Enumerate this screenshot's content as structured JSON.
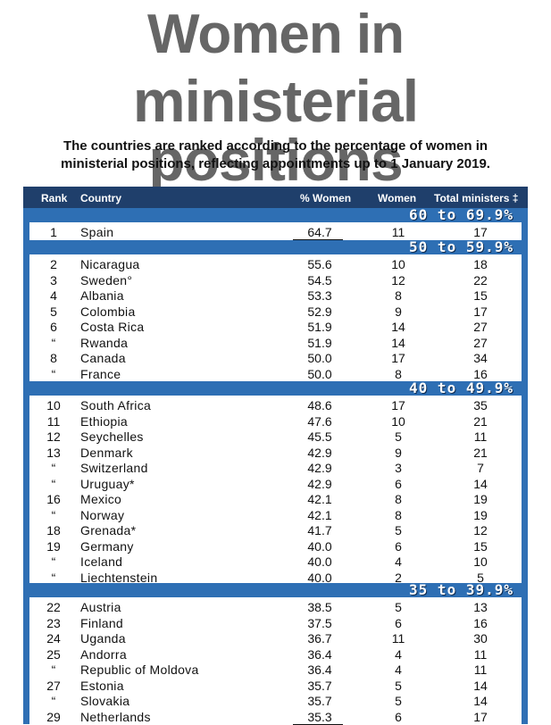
{
  "title": {
    "line1": "Women in",
    "line2": "ministerial positions"
  },
  "subtitle": {
    "line1": "The countries are ranked according to the percentage of women in",
    "line2": "ministerial positions, reflecting appointments up to 1 January 2019."
  },
  "table": {
    "headers": {
      "rank": "Rank",
      "country": "Country",
      "pct": "% Women",
      "women": "Women",
      "total": "Total ministers ‡"
    },
    "sections": [
      {
        "label": "60 to 69.9%",
        "rows": [
          {
            "rank": "1",
            "country": "Spain",
            "pct": "64.7",
            "women": "11",
            "total": "17"
          }
        ]
      },
      {
        "label": "50 to 59.9%",
        "rows": [
          {
            "rank": "2",
            "country": "Nicaragua",
            "pct": "55.6",
            "women": "10",
            "total": "18"
          },
          {
            "rank": "3",
            "country": "Sweden°",
            "pct": "54.5",
            "women": "12",
            "total": "22"
          },
          {
            "rank": "4",
            "country": "Albania",
            "pct": "53.3",
            "women": "8",
            "total": "15"
          },
          {
            "rank": "5",
            "country": "Colombia",
            "pct": "52.9",
            "women": "9",
            "total": "17"
          },
          {
            "rank": "6",
            "country": "Costa Rica",
            "pct": "51.9",
            "women": "14",
            "total": "27"
          },
          {
            "rank": "“",
            "country": "Rwanda",
            "pct": "51.9",
            "women": "14",
            "total": "27"
          },
          {
            "rank": "8",
            "country": "Canada",
            "pct": "50.0",
            "women": "17",
            "total": "34"
          },
          {
            "rank": "“",
            "country": "France",
            "pct": "50.0",
            "women": "8",
            "total": "16"
          }
        ]
      },
      {
        "label": "40 to 49.9%",
        "rows": [
          {
            "rank": "10",
            "country": "South Africa",
            "pct": "48.6",
            "women": "17",
            "total": "35"
          },
          {
            "rank": "11",
            "country": "Ethiopia",
            "pct": "47.6",
            "women": "10",
            "total": "21"
          },
          {
            "rank": "12",
            "country": "Seychelles",
            "pct": "45.5",
            "women": "5",
            "total": "11"
          },
          {
            "rank": "13",
            "country": "Denmark",
            "pct": "42.9",
            "women": "9",
            "total": "21"
          },
          {
            "rank": "“",
            "country": "Switzerland",
            "pct": "42.9",
            "women": "3",
            "total": "7"
          },
          {
            "rank": "“",
            "country": "Uruguay*",
            "pct": "42.9",
            "women": "6",
            "total": "14"
          },
          {
            "rank": "16",
            "country": "Mexico",
            "pct": "42.1",
            "women": "8",
            "total": "19"
          },
          {
            "rank": "“",
            "country": "Norway",
            "pct": "42.1",
            "women": "8",
            "total": "19"
          },
          {
            "rank": "18",
            "country": "Grenada*",
            "pct": "41.7",
            "women": "5",
            "total": "12"
          },
          {
            "rank": "19",
            "country": "Germany",
            "pct": "40.0",
            "women": "6",
            "total": "15"
          },
          {
            "rank": "“",
            "country": "Iceland",
            "pct": "40.0",
            "women": "4",
            "total": "10"
          },
          {
            "rank": "“",
            "country": "Liechtenstein",
            "pct": "40.0",
            "women": "2",
            "total": "5"
          }
        ]
      },
      {
        "label": "35 to 39.9%",
        "rows": [
          {
            "rank": "22",
            "country": "Austria",
            "pct": "38.5",
            "women": "5",
            "total": "13"
          },
          {
            "rank": "23",
            "country": "Finland",
            "pct": "37.5",
            "women": "6",
            "total": "16"
          },
          {
            "rank": "24",
            "country": "Uganda",
            "pct": "36.7",
            "women": "11",
            "total": "30"
          },
          {
            "rank": "25",
            "country": "Andorra",
            "pct": "36.4",
            "women": "4",
            "total": "11"
          },
          {
            "rank": "“",
            "country": "Republic of Moldova",
            "pct": "36.4",
            "women": "4",
            "total": "11"
          },
          {
            "rank": "27",
            "country": "Estonia",
            "pct": "35.7",
            "women": "5",
            "total": "14"
          },
          {
            "rank": "“",
            "country": "Slovakia",
            "pct": "35.7",
            "women": "5",
            "total": "14"
          },
          {
            "rank": "29",
            "country": "Netherlands",
            "pct": "35.3",
            "women": "6",
            "total": "17"
          }
        ]
      }
    ]
  }
}
